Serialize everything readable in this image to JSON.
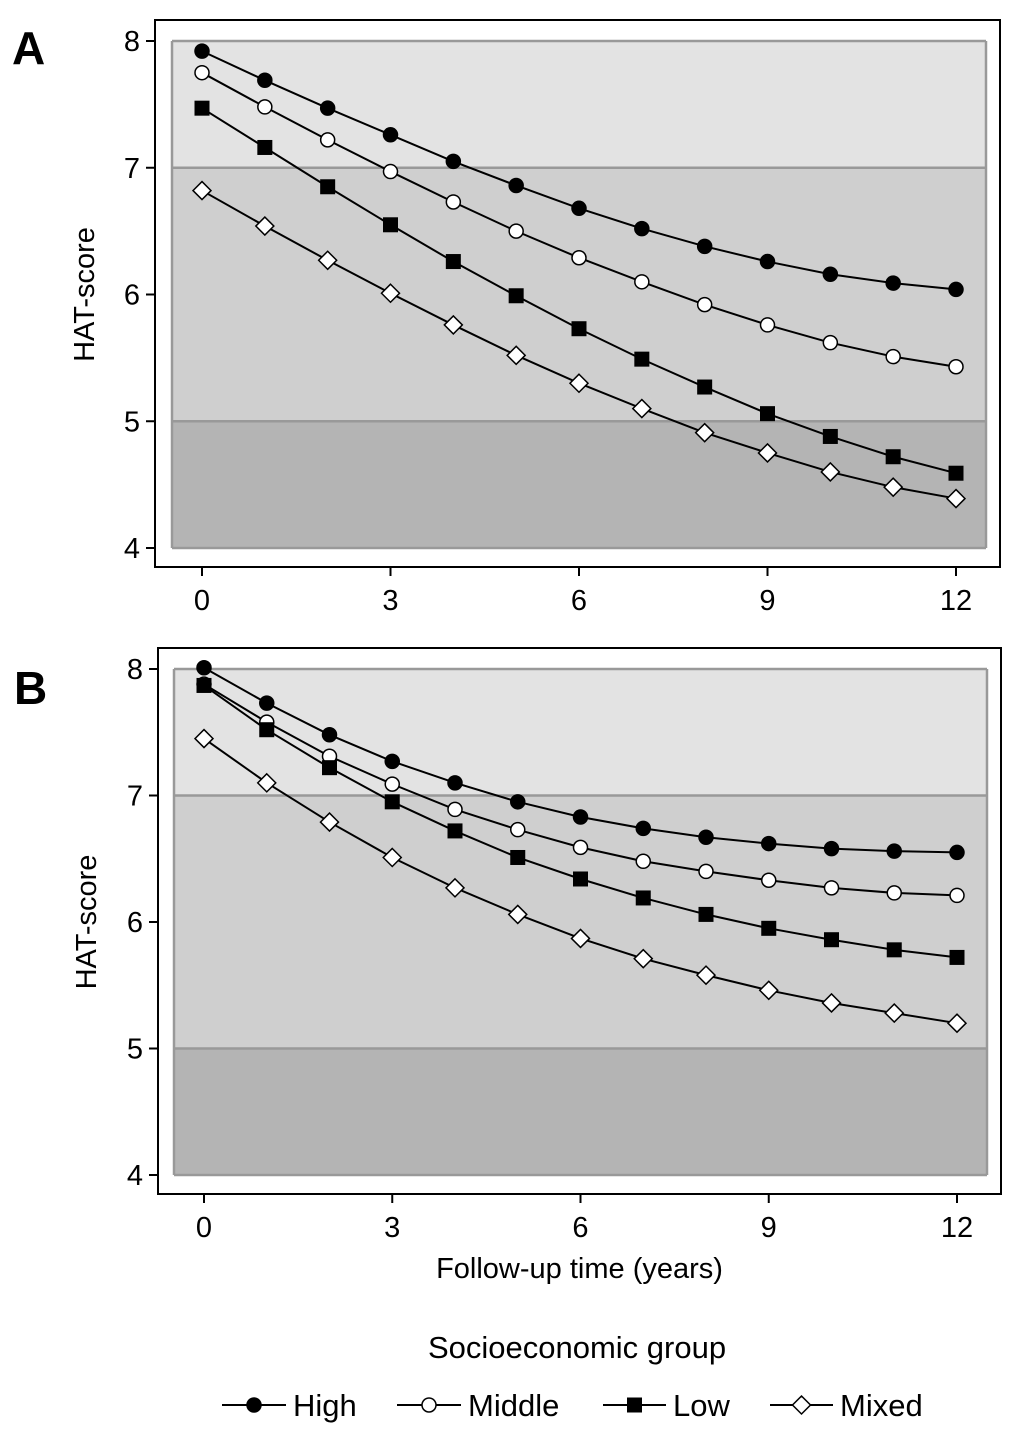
{
  "chart_data": [
    {
      "type": "line",
      "panel_label": "A",
      "ylabel": "HAT-score",
      "xlabel": "",
      "x": [
        0,
        1,
        2,
        3,
        4,
        5,
        6,
        7,
        8,
        9,
        10,
        11,
        12
      ],
      "xticks": [
        0,
        3,
        6,
        9,
        12
      ],
      "yticks": [
        4,
        5,
        6,
        7,
        8
      ],
      "xlim": [
        0,
        12
      ],
      "ylim": [
        4,
        8
      ],
      "grid": false,
      "bands": [
        {
          "from": 7,
          "to": 8,
          "color": "#e3e3e3"
        },
        {
          "from": 5,
          "to": 7,
          "color": "#cfcfcf"
        },
        {
          "from": 4,
          "to": 5,
          "color": "#b4b4b4"
        }
      ],
      "series": [
        {
          "name": "High",
          "marker": "circle-filled",
          "values": [
            7.92,
            7.69,
            7.47,
            7.26,
            7.05,
            6.86,
            6.68,
            6.52,
            6.38,
            6.26,
            6.16,
            6.09,
            6.04
          ]
        },
        {
          "name": "Middle",
          "marker": "circle-open",
          "values": [
            7.75,
            7.48,
            7.22,
            6.97,
            6.73,
            6.5,
            6.29,
            6.1,
            5.92,
            5.76,
            5.62,
            5.51,
            5.43
          ]
        },
        {
          "name": "Low",
          "marker": "square-filled",
          "values": [
            7.47,
            7.16,
            6.85,
            6.55,
            6.26,
            5.99,
            5.73,
            5.49,
            5.27,
            5.06,
            4.88,
            4.72,
            4.59
          ]
        },
        {
          "name": "Mixed",
          "marker": "diamond-open",
          "values": [
            6.82,
            6.54,
            6.27,
            6.01,
            5.76,
            5.52,
            5.3,
            5.1,
            4.91,
            4.75,
            4.6,
            4.48,
            4.39
          ]
        }
      ]
    },
    {
      "type": "line",
      "panel_label": "B",
      "ylabel": "HAT-score",
      "xlabel": "Follow-up time (years)",
      "x": [
        0,
        1,
        2,
        3,
        4,
        5,
        6,
        7,
        8,
        9,
        10,
        11,
        12
      ],
      "xticks": [
        0,
        3,
        6,
        9,
        12
      ],
      "yticks": [
        4,
        5,
        6,
        7,
        8
      ],
      "xlim": [
        0,
        12
      ],
      "ylim": [
        4,
        8
      ],
      "grid": false,
      "bands": [
        {
          "from": 7,
          "to": 8,
          "color": "#e3e3e3"
        },
        {
          "from": 5,
          "to": 7,
          "color": "#cfcfcf"
        },
        {
          "from": 4,
          "to": 5,
          "color": "#b4b4b4"
        }
      ],
      "series": [
        {
          "name": "High",
          "marker": "circle-filled",
          "values": [
            8.01,
            7.73,
            7.48,
            7.27,
            7.1,
            6.95,
            6.83,
            6.74,
            6.67,
            6.62,
            6.58,
            6.56,
            6.55
          ]
        },
        {
          "name": "Middle",
          "marker": "circle-open",
          "values": [
            7.88,
            7.58,
            7.31,
            7.09,
            6.89,
            6.73,
            6.59,
            6.48,
            6.4,
            6.33,
            6.27,
            6.23,
            6.21
          ]
        },
        {
          "name": "Low",
          "marker": "square-filled",
          "values": [
            7.87,
            7.52,
            7.22,
            6.95,
            6.72,
            6.51,
            6.34,
            6.19,
            6.06,
            5.95,
            5.86,
            5.78,
            5.72
          ]
        },
        {
          "name": "Mixed",
          "marker": "diamond-open",
          "values": [
            7.45,
            7.1,
            6.79,
            6.51,
            6.27,
            6.06,
            5.87,
            5.71,
            5.58,
            5.46,
            5.36,
            5.28,
            5.2
          ]
        }
      ]
    }
  ],
  "legend": {
    "title": "Socioeconomic group",
    "placement": "bottom",
    "items": [
      {
        "label": "High",
        "marker": "circle-filled"
      },
      {
        "label": "Middle",
        "marker": "circle-open"
      },
      {
        "label": "Low",
        "marker": "square-filled"
      },
      {
        "label": "Mixed",
        "marker": "diamond-open"
      }
    ]
  }
}
